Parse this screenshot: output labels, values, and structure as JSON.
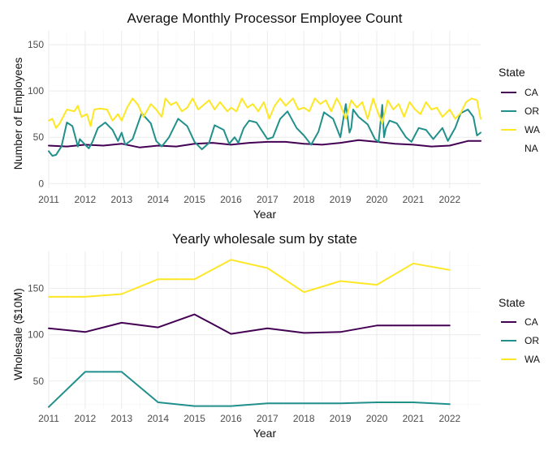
{
  "chart_data": [
    {
      "type": "line",
      "title": "Average Monthly Processor Employee Count",
      "xlabel": "Year",
      "ylabel": "Number of Employees",
      "xlim": [
        2011,
        2022.85
      ],
      "ylim": [
        -5,
        165
      ],
      "x_ticks": [
        2011,
        2012,
        2013,
        2014,
        2015,
        2016,
        2017,
        2018,
        2019,
        2020,
        2021,
        2022
      ],
      "y_ticks": [
        0,
        50,
        100,
        150
      ],
      "grid": true,
      "legend": {
        "title": "State",
        "placement": "right",
        "entries": [
          "CA",
          "OR",
          "WA",
          "NA"
        ]
      },
      "series": [
        {
          "name": "CA",
          "color": "#440154",
          "x": [
            2011.0,
            2011.5,
            2012.0,
            2012.5,
            2013.0,
            2013.5,
            2014.0,
            2014.5,
            2015.0,
            2015.5,
            2016.0,
            2016.5,
            2017.0,
            2017.5,
            2018.0,
            2018.5,
            2019.0,
            2019.5,
            2020.0,
            2020.5,
            2021.0,
            2021.5,
            2022.0,
            2022.5,
            2022.85
          ],
          "values": [
            41,
            40,
            42,
            41,
            43,
            39,
            41,
            40,
            43,
            44,
            42,
            44,
            45,
            45,
            43,
            42,
            44,
            47,
            45,
            43,
            42,
            40,
            41,
            46,
            46
          ]
        },
        {
          "name": "OR",
          "color": "#21908C",
          "x": [
            2011.0,
            2011.1,
            2011.2,
            2011.35,
            2011.5,
            2011.65,
            2011.8,
            2011.85,
            2011.95,
            2012.1,
            2012.2,
            2012.35,
            2012.55,
            2012.75,
            2012.9,
            2013.0,
            2013.1,
            2013.3,
            2013.55,
            2013.8,
            2013.95,
            2014.1,
            2014.3,
            2014.55,
            2014.8,
            2015.0,
            2015.2,
            2015.4,
            2015.55,
            2015.8,
            2015.95,
            2016.1,
            2016.2,
            2016.35,
            2016.5,
            2016.7,
            2016.9,
            2017.0,
            2017.15,
            2017.35,
            2017.55,
            2017.8,
            2018.0,
            2018.2,
            2018.4,
            2018.55,
            2018.8,
            2019.0,
            2019.15,
            2019.25,
            2019.3,
            2019.35,
            2019.5,
            2019.75,
            2019.95,
            2020.05,
            2020.15,
            2020.2,
            2020.25,
            2020.35,
            2020.55,
            2020.8,
            2020.95,
            2021.15,
            2021.35,
            2021.55,
            2021.8,
            2021.95,
            2022.15,
            2022.3,
            2022.5,
            2022.65,
            2022.75,
            2022.85
          ],
          "values": [
            35,
            30,
            31,
            40,
            66,
            62,
            40,
            48,
            44,
            38,
            45,
            60,
            66,
            58,
            46,
            55,
            42,
            48,
            76,
            65,
            46,
            40,
            50,
            70,
            62,
            45,
            37,
            44,
            63,
            58,
            43,
            50,
            44,
            60,
            68,
            66,
            54,
            48,
            50,
            70,
            78,
            60,
            52,
            42,
            56,
            77,
            70,
            50,
            86,
            55,
            60,
            80,
            72,
            64,
            48,
            45,
            85,
            50,
            60,
            68,
            65,
            50,
            45,
            60,
            58,
            48,
            60,
            46,
            60,
            76,
            80,
            72,
            52,
            55
          ]
        },
        {
          "name": "WA",
          "color": "#FDE725",
          "x": [
            2011.0,
            2011.1,
            2011.2,
            2011.3,
            2011.5,
            2011.7,
            2011.8,
            2011.9,
            2012.05,
            2012.15,
            2012.25,
            2012.4,
            2012.6,
            2012.75,
            2012.9,
            2013.0,
            2013.15,
            2013.3,
            2013.45,
            2013.6,
            2013.8,
            2013.95,
            2014.1,
            2014.2,
            2014.35,
            2014.5,
            2014.65,
            2014.8,
            2014.95,
            2015.1,
            2015.25,
            2015.4,
            2015.55,
            2015.7,
            2015.9,
            2016.0,
            2016.15,
            2016.3,
            2016.45,
            2016.6,
            2016.75,
            2016.9,
            2017.05,
            2017.2,
            2017.35,
            2017.5,
            2017.7,
            2017.85,
            2018.0,
            2018.15,
            2018.3,
            2018.45,
            2018.6,
            2018.75,
            2018.9,
            2019.0,
            2019.15,
            2019.3,
            2019.45,
            2019.6,
            2019.75,
            2019.9,
            2020.0,
            2020.15,
            2020.3,
            2020.45,
            2020.6,
            2020.75,
            2020.9,
            2021.05,
            2021.2,
            2021.35,
            2021.5,
            2021.65,
            2021.8,
            2022.0,
            2022.15,
            2022.3,
            2022.45,
            2022.6,
            2022.75,
            2022.85
          ],
          "values": [
            68,
            70,
            60,
            65,
            80,
            78,
            84,
            72,
            75,
            62,
            80,
            81,
            80,
            68,
            75,
            68,
            82,
            92,
            85,
            72,
            86,
            80,
            72,
            92,
            85,
            88,
            78,
            82,
            92,
            80,
            85,
            90,
            80,
            88,
            78,
            82,
            78,
            92,
            82,
            86,
            78,
            88,
            70,
            84,
            92,
            84,
            92,
            80,
            82,
            78,
            92,
            86,
            90,
            78,
            92,
            85,
            70,
            90,
            82,
            88,
            70,
            92,
            80,
            65,
            90,
            80,
            86,
            72,
            88,
            80,
            75,
            88,
            80,
            82,
            72,
            80,
            70,
            76,
            88,
            92,
            90,
            70
          ]
        }
      ]
    },
    {
      "type": "line",
      "title": "Yearly wholesale sum by state",
      "xlabel": "Year",
      "ylabel": "Wholesale ($10M)",
      "xlim": [
        2011,
        2022.85
      ],
      "ylim": [
        20,
        190
      ],
      "x_ticks": [
        2011,
        2012,
        2013,
        2014,
        2015,
        2016,
        2017,
        2018,
        2019,
        2020,
        2021,
        2022
      ],
      "y_ticks": [
        50,
        100,
        150
      ],
      "grid": true,
      "legend": {
        "title": "State",
        "placement": "right",
        "entries": [
          "CA",
          "OR",
          "WA"
        ]
      },
      "series": [
        {
          "name": "CA",
          "color": "#440154",
          "x": [
            2011,
            2012,
            2013,
            2014,
            2015,
            2016,
            2017,
            2018,
            2019,
            2020,
            2021,
            2022
          ],
          "values": [
            107,
            103,
            113,
            108,
            122,
            101,
            107,
            102,
            103,
            110,
            110,
            110
          ]
        },
        {
          "name": "OR",
          "color": "#21908C",
          "x": [
            2011,
            2012,
            2013,
            2014,
            2015,
            2016,
            2017,
            2018,
            2019,
            2020,
            2021,
            2022
          ],
          "values": [
            22,
            60,
            60,
            27,
            23,
            23,
            26,
            26,
            26,
            27,
            27,
            25
          ]
        },
        {
          "name": "WA",
          "color": "#FDE725",
          "x": [
            2011,
            2012,
            2013,
            2014,
            2015,
            2016,
            2017,
            2018,
            2019,
            2020,
            2021,
            2022
          ],
          "values": [
            141,
            141,
            144,
            160,
            160,
            181,
            172,
            146,
            158,
            154,
            177,
            170
          ]
        }
      ]
    }
  ]
}
